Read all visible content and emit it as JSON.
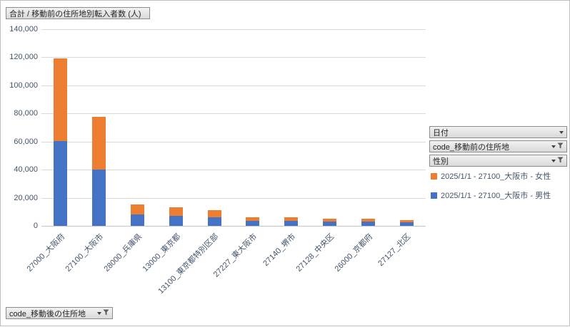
{
  "chart_data": {
    "type": "bar",
    "stacked": true,
    "title": "合計 / 移動前の住所地別転入者数 (人)",
    "categories": [
      "27000_大阪府",
      "27100_大阪市",
      "28000_兵庫県",
      "13000_東京都",
      "13100_東京都特別区部",
      "27227_東大阪市",
      "27140_堺市",
      "27128_中央区",
      "26000_京都府",
      "27127_北区"
    ],
    "series": [
      {
        "name": "2025/1/1 - 27100_大阪市 - 男性",
        "color": "#4472C4",
        "values": [
          60500,
          40000,
          8000,
          7100,
          6100,
          3800,
          3700,
          3000,
          2900,
          2400
        ]
      },
      {
        "name": "2025/1/1 - 27100_大阪市 - 女性",
        "color": "#ED7D31",
        "values": [
          58500,
          37500,
          7200,
          6100,
          5100,
          2300,
          2300,
          2100,
          2100,
          1900
        ]
      }
    ],
    "xlabel": "code_移動後の住所地",
    "ylabel": "合計 / 移動前の住所地別転入者数 (人)",
    "ylim": [
      0,
      140000
    ],
    "ytick_step": 20000,
    "y_tick_labels": [
      "0",
      "20,000",
      "40,000",
      "60,000",
      "80,000",
      "100,000",
      "120,000",
      "140,000"
    ],
    "grid": true,
    "legend_position": "right"
  },
  "field_buttons": {
    "value_field": "合計 / 移動前の住所地別転入者数 (人)",
    "axis_field": "code_移動後の住所地",
    "filters": [
      {
        "label": "日付",
        "icon": "dropdown-arrow-icon"
      },
      {
        "label": "code_移動前の住所地",
        "icon": "filter-funnel-icon"
      },
      {
        "label": "性別",
        "icon": "filter-funnel-icon"
      }
    ]
  },
  "legend": {
    "items": [
      {
        "label": "2025/1/1 - 27100_大阪市 - 女性",
        "color": "#ED7D31"
      },
      {
        "label": "2025/1/1 - 27100_大阪市 - 男性",
        "color": "#4472C4"
      }
    ]
  }
}
